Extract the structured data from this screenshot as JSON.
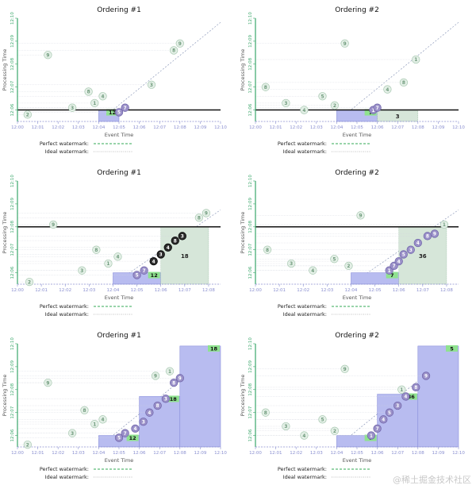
{
  "chart_data": [
    {
      "type": "scatter",
      "title": "Ordering #1",
      "xlabel": "Event Time",
      "ylabel": "Processing Time",
      "xticks": [
        "12:00",
        "12:01",
        "12:02",
        "12:03",
        "12:04",
        "12:05",
        "12:06",
        "12:07",
        "12:08",
        "12:09",
        "12:10"
      ],
      "yticks": [
        "12:06",
        "12:07",
        "12:08",
        "12:09",
        "12:10"
      ],
      "xlim": [
        0,
        10
      ],
      "ylim": [
        5.5,
        10
      ],
      "watermark_level": 6.0,
      "green_regions": [],
      "blue_regions": [
        {
          "x0": 4,
          "x1": 5,
          "y1": 6.0,
          "label": "12"
        }
      ],
      "points": [
        {
          "x": 0.5,
          "y": 5.8,
          "label": "2",
          "style": "light"
        },
        {
          "x": 1.5,
          "y": 8.4,
          "label": "9",
          "style": "light"
        },
        {
          "x": 2.7,
          "y": 6.1,
          "label": "3",
          "style": "light"
        },
        {
          "x": 3.5,
          "y": 6.8,
          "label": "8",
          "style": "light"
        },
        {
          "x": 3.8,
          "y": 6.3,
          "label": "1",
          "style": "light"
        },
        {
          "x": 4.2,
          "y": 6.6,
          "label": "4",
          "style": "light"
        },
        {
          "x": 5.0,
          "y": 5.9,
          "label": "5",
          "style": "mid"
        },
        {
          "x": 5.3,
          "y": 6.1,
          "label": "7",
          "style": "mid"
        },
        {
          "x": 6.6,
          "y": 7.1,
          "label": "3",
          "style": "light"
        },
        {
          "x": 7.7,
          "y": 8.6,
          "label": "8",
          "style": "light"
        },
        {
          "x": 8.0,
          "y": 8.9,
          "label": "9",
          "style": "light"
        }
      ]
    },
    {
      "type": "scatter",
      "title": "Ordering #2",
      "xlabel": "Event Time",
      "ylabel": "Processing Time",
      "xticks": [
        "12:00",
        "12:01",
        "12:02",
        "12:03",
        "12:04",
        "12:05",
        "12:06",
        "12:07",
        "12:08",
        "12:09",
        "12:10"
      ],
      "yticks": [
        "12:06",
        "12:07",
        "12:08",
        "12:09",
        "12:10"
      ],
      "xlim": [
        0,
        10
      ],
      "ylim": [
        5.5,
        10
      ],
      "watermark_level": 6.0,
      "green_regions": [
        {
          "x0": 6,
          "x1": 8,
          "y1": 6.0,
          "label": "3"
        }
      ],
      "blue_regions": [
        {
          "x0": 4,
          "x1": 6,
          "y1": 6.0,
          "label": "7"
        }
      ],
      "points": [
        {
          "x": 0.5,
          "y": 7.0,
          "label": "8",
          "style": "light"
        },
        {
          "x": 1.5,
          "y": 6.3,
          "label": "3",
          "style": "light"
        },
        {
          "x": 2.4,
          "y": 6.0,
          "label": "4",
          "style": "light"
        },
        {
          "x": 3.3,
          "y": 6.6,
          "label": "5",
          "style": "light"
        },
        {
          "x": 3.9,
          "y": 6.2,
          "label": "2",
          "style": "light"
        },
        {
          "x": 4.4,
          "y": 8.9,
          "label": "9",
          "style": "light"
        },
        {
          "x": 5.8,
          "y": 6.0,
          "label": "1",
          "style": "mid"
        },
        {
          "x": 6.0,
          "y": 6.1,
          "label": "7",
          "style": "mid"
        },
        {
          "x": 6.5,
          "y": 6.9,
          "label": "4",
          "style": "light"
        },
        {
          "x": 7.3,
          "y": 7.2,
          "label": "8",
          "style": "light"
        },
        {
          "x": 7.9,
          "y": 8.2,
          "label": "1",
          "style": "light"
        }
      ]
    },
    {
      "type": "scatter",
      "title": "Ordering #1",
      "xlabel": "Event Time",
      "ylabel": "Processing Time",
      "xticks": [
        "12:00",
        "12:01",
        "12:02",
        "12:03",
        "12:04",
        "12:05",
        "12:06",
        "12:07",
        "12:08"
      ],
      "yticks": [
        "12:06",
        "12:07",
        "12:08",
        "12:09",
        "12:10"
      ],
      "xlim": [
        0,
        8.5
      ],
      "ylim": [
        5.5,
        10
      ],
      "watermark_level": 8.0,
      "green_regions": [
        {
          "x0": 6,
          "x1": 8,
          "y1": 8.0,
          "label": "18"
        }
      ],
      "blue_regions": [
        {
          "x0": 4,
          "x1": 6,
          "y1": 6.0,
          "label": "12"
        }
      ],
      "points": [
        {
          "x": 0.5,
          "y": 5.6,
          "label": "2",
          "style": "light"
        },
        {
          "x": 1.5,
          "y": 8.1,
          "label": "9",
          "style": "light"
        },
        {
          "x": 2.7,
          "y": 6.1,
          "label": "3",
          "style": "light"
        },
        {
          "x": 3.3,
          "y": 7.0,
          "label": "8",
          "style": "light"
        },
        {
          "x": 3.8,
          "y": 6.4,
          "label": "1",
          "style": "light"
        },
        {
          "x": 4.2,
          "y": 6.7,
          "label": "4",
          "style": "light"
        },
        {
          "x": 5.0,
          "y": 5.9,
          "label": "5",
          "style": "mid"
        },
        {
          "x": 5.3,
          "y": 6.1,
          "label": "7",
          "style": "mid"
        },
        {
          "x": 5.7,
          "y": 6.5,
          "label": "4",
          "style": "dark"
        },
        {
          "x": 6.0,
          "y": 6.8,
          "label": "3",
          "style": "dark"
        },
        {
          "x": 6.3,
          "y": 7.1,
          "label": "4",
          "style": "dark"
        },
        {
          "x": 6.6,
          "y": 7.4,
          "label": "8",
          "style": "dark"
        },
        {
          "x": 6.9,
          "y": 7.6,
          "label": "3",
          "style": "dark"
        },
        {
          "x": 7.6,
          "y": 8.4,
          "label": "8",
          "style": "light"
        },
        {
          "x": 7.9,
          "y": 8.6,
          "label": "9",
          "style": "light"
        }
      ]
    },
    {
      "type": "scatter",
      "title": "Ordering #2",
      "xlabel": "Event Time",
      "ylabel": "Processing Time",
      "xticks": [
        "12:00",
        "12:01",
        "12:02",
        "12:03",
        "12:04",
        "12:05",
        "12:06",
        "12:07",
        "12:08"
      ],
      "yticks": [
        "12:06",
        "12:07",
        "12:08",
        "12:09",
        "12:10"
      ],
      "xlim": [
        0,
        8.5
      ],
      "ylim": [
        5.5,
        10
      ],
      "watermark_level": 8.0,
      "green_regions": [
        {
          "x0": 6,
          "x1": 8,
          "y1": 8.0,
          "label": "36"
        }
      ],
      "blue_regions": [
        {
          "x0": 4,
          "x1": 6,
          "y1": 6.0,
          "label": "7"
        }
      ],
      "points": [
        {
          "x": 0.5,
          "y": 7.0,
          "label": "8",
          "style": "light"
        },
        {
          "x": 1.5,
          "y": 6.4,
          "label": "3",
          "style": "light"
        },
        {
          "x": 2.4,
          "y": 6.1,
          "label": "4",
          "style": "light"
        },
        {
          "x": 3.3,
          "y": 6.6,
          "label": "5",
          "style": "light"
        },
        {
          "x": 3.9,
          "y": 6.3,
          "label": "2",
          "style": "light"
        },
        {
          "x": 4.4,
          "y": 8.5,
          "label": "9",
          "style": "light"
        },
        {
          "x": 5.6,
          "y": 6.1,
          "label": "1",
          "style": "mid"
        },
        {
          "x": 5.8,
          "y": 6.3,
          "label": "7",
          "style": "mid"
        },
        {
          "x": 6.0,
          "y": 6.5,
          "label": "4",
          "style": "mid"
        },
        {
          "x": 6.2,
          "y": 6.8,
          "label": "5",
          "style": "mid"
        },
        {
          "x": 6.5,
          "y": 7.0,
          "label": "3",
          "style": "mid"
        },
        {
          "x": 6.8,
          "y": 7.3,
          "label": "4",
          "style": "mid"
        },
        {
          "x": 7.2,
          "y": 7.6,
          "label": "8",
          "style": "mid"
        },
        {
          "x": 7.5,
          "y": 7.7,
          "label": "9",
          "style": "mid"
        },
        {
          "x": 7.9,
          "y": 8.1,
          "label": "1",
          "style": "light"
        }
      ]
    },
    {
      "type": "scatter",
      "title": "Ordering #1",
      "xlabel": "Event Time",
      "ylabel": "Processing Time",
      "xticks": [
        "12:00",
        "12:01",
        "12:02",
        "12:03",
        "12:04",
        "12:05",
        "12:06",
        "12:07",
        "12:08",
        "12:09",
        "12:10"
      ],
      "yticks": [
        "12:06",
        "12:07",
        "12:08",
        "12:09",
        "12:10"
      ],
      "xlim": [
        0,
        10
      ],
      "ylim": [
        5.5,
        10
      ],
      "watermark_level": null,
      "green_regions": [],
      "blue_regions": [
        {
          "x0": 4,
          "x1": 6,
          "y1": 6.0,
          "label": "12"
        },
        {
          "x0": 6,
          "x1": 8,
          "y1": 7.7,
          "label": "18"
        },
        {
          "x0": 8,
          "x1": 10,
          "y1": 9.9,
          "label": "18"
        }
      ],
      "points": [
        {
          "x": 0.5,
          "y": 5.6,
          "label": "2",
          "style": "light"
        },
        {
          "x": 1.5,
          "y": 8.3,
          "label": "9",
          "style": "light"
        },
        {
          "x": 2.7,
          "y": 6.1,
          "label": "3",
          "style": "light"
        },
        {
          "x": 3.3,
          "y": 7.1,
          "label": "8",
          "style": "light"
        },
        {
          "x": 3.8,
          "y": 6.5,
          "label": "1",
          "style": "light"
        },
        {
          "x": 4.2,
          "y": 6.7,
          "label": "4",
          "style": "light"
        },
        {
          "x": 5.0,
          "y": 5.9,
          "label": "5",
          "style": "mid"
        },
        {
          "x": 5.3,
          "y": 6.1,
          "label": "7",
          "style": "mid"
        },
        {
          "x": 5.8,
          "y": 6.3,
          "label": "4",
          "style": "mid"
        },
        {
          "x": 6.2,
          "y": 6.6,
          "label": "3",
          "style": "mid"
        },
        {
          "x": 6.5,
          "y": 7.0,
          "label": "4",
          "style": "mid"
        },
        {
          "x": 6.9,
          "y": 7.3,
          "label": "8",
          "style": "mid"
        },
        {
          "x": 7.3,
          "y": 7.6,
          "label": "3",
          "style": "mid"
        },
        {
          "x": 7.7,
          "y": 8.3,
          "label": "8",
          "style": "mid"
        },
        {
          "x": 8.0,
          "y": 8.5,
          "label": "9",
          "style": "mid"
        },
        {
          "x": 7.5,
          "y": 8.8,
          "label": "1",
          "style": "light"
        },
        {
          "x": 6.8,
          "y": 8.6,
          "label": "9",
          "style": "light"
        }
      ]
    },
    {
      "type": "scatter",
      "title": "Ordering #2",
      "xlabel": "Event Time",
      "ylabel": "Processing Time",
      "xticks": [
        "12:00",
        "12:01",
        "12:02",
        "12:03",
        "12:04",
        "12:05",
        "12:06",
        "12:07",
        "12:08",
        "12:09",
        "12:10"
      ],
      "yticks": [
        "12:06",
        "12:07",
        "12:08",
        "12:09",
        "12:10"
      ],
      "xlim": [
        0,
        10
      ],
      "ylim": [
        5.5,
        10
      ],
      "watermark_level": null,
      "green_regions": [],
      "blue_regions": [
        {
          "x0": 4,
          "x1": 6,
          "y1": 6.0,
          "label": "7"
        },
        {
          "x0": 6,
          "x1": 8,
          "y1": 7.8,
          "label": "36"
        },
        {
          "x0": 8,
          "x1": 10,
          "y1": 9.9,
          "label": "5"
        }
      ],
      "points": [
        {
          "x": 0.5,
          "y": 7.0,
          "label": "8",
          "style": "light"
        },
        {
          "x": 1.5,
          "y": 6.4,
          "label": "3",
          "style": "light"
        },
        {
          "x": 2.4,
          "y": 6.0,
          "label": "4",
          "style": "light"
        },
        {
          "x": 3.3,
          "y": 6.7,
          "label": "5",
          "style": "light"
        },
        {
          "x": 3.9,
          "y": 6.2,
          "label": "2",
          "style": "light"
        },
        {
          "x": 4.4,
          "y": 8.9,
          "label": "9",
          "style": "light"
        },
        {
          "x": 5.7,
          "y": 6.0,
          "label": "1",
          "style": "mid"
        },
        {
          "x": 6.0,
          "y": 6.3,
          "label": "7",
          "style": "mid"
        },
        {
          "x": 6.3,
          "y": 6.7,
          "label": "4",
          "style": "mid"
        },
        {
          "x": 6.6,
          "y": 7.0,
          "label": "5",
          "style": "mid"
        },
        {
          "x": 7.0,
          "y": 7.3,
          "label": "3",
          "style": "mid"
        },
        {
          "x": 7.4,
          "y": 7.7,
          "label": "4",
          "style": "mid"
        },
        {
          "x": 7.9,
          "y": 8.1,
          "label": "8",
          "style": "mid"
        },
        {
          "x": 8.4,
          "y": 8.6,
          "label": "9",
          "style": "mid"
        },
        {
          "x": 7.2,
          "y": 8.0,
          "label": "1",
          "style": "light"
        }
      ]
    }
  ],
  "legend": {
    "perfect": "Perfect watermark:",
    "ideal": "Ideal watermark:"
  },
  "brand": "@稀土掘金技术社区",
  "colors": {
    "axis": "#3aa66a",
    "tick": "#8a8fd0",
    "blue": "#b8bcf0",
    "green": "#d6e6d9",
    "wm": "#111111",
    "perfect": "#33aa55",
    "ideal": "#bbbbbb"
  }
}
